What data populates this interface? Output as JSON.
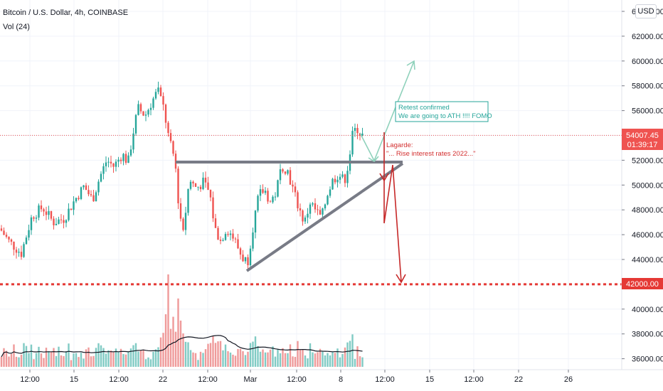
{
  "header": {
    "symbol_line": "Bitcoin / U.S. Dollar, 4h, COINBASE",
    "volume_line": "Vol (24)"
  },
  "currency_button": "USD",
  "price_axis": {
    "ticks": [
      "64000.00",
      "62000.00",
      "60000.00",
      "58000.00",
      "56000.00",
      "54000.00",
      "52000.00",
      "50000.00",
      "48000.00",
      "46000.00",
      "44000.00",
      "42000.00",
      "40000.00",
      "38000.00",
      "36000.00"
    ],
    "current_price_label": "54007.45",
    "countdown_label": "01:39:17",
    "target_price_label": "42000.00"
  },
  "time_axis": {
    "ticks": [
      "12:00",
      "15",
      "12:00",
      "22",
      "12:00",
      "Mar",
      "12:00",
      "8",
      "12:00",
      "15",
      "12:00",
      "22",
      "26"
    ]
  },
  "annotations": {
    "bullish_line1": "Retest confirmed",
    "bullish_line2": "We are going to ATH !!!! FOMO",
    "bearish_line1": "Lagarde:",
    "bearish_line2": "\"... Rise interest rates 2022...\""
  },
  "colors": {
    "up": "#26a69a",
    "down": "#ef5350",
    "volume_up": "#80cbc4",
    "volume_down": "#ef9a9a",
    "trendline": "#787b86",
    "support": "#e53935",
    "bull_arrow": "#8fd1bb",
    "bear_arrow": "#c62828"
  },
  "chart_data": {
    "type": "candlestick",
    "timeframe": "4h",
    "y_range": [
      35000,
      64800
    ],
    "current_price": 54007.45,
    "support_level": 42000,
    "close_path": [
      {
        "x": 0,
        "y": 46500
      },
      {
        "x": 12,
        "y": 45500
      },
      {
        "x": 30,
        "y": 44500
      },
      {
        "x": 45,
        "y": 47500
      },
      {
        "x": 60,
        "y": 48200
      },
      {
        "x": 75,
        "y": 47000
      },
      {
        "x": 90,
        "y": 47300
      },
      {
        "x": 105,
        "y": 48800
      },
      {
        "x": 118,
        "y": 49900
      },
      {
        "x": 130,
        "y": 48800
      },
      {
        "x": 140,
        "y": 50600
      },
      {
        "x": 150,
        "y": 52000
      },
      {
        "x": 160,
        "y": 51500
      },
      {
        "x": 172,
        "y": 52500
      },
      {
        "x": 180,
        "y": 51800
      },
      {
        "x": 188,
        "y": 54500
      },
      {
        "x": 194,
        "y": 56200
      },
      {
        "x": 204,
        "y": 55600
      },
      {
        "x": 214,
        "y": 56800
      },
      {
        "x": 222,
        "y": 57600
      },
      {
        "x": 230,
        "y": 56200
      },
      {
        "x": 238,
        "y": 53500
      },
      {
        "x": 246,
        "y": 52000
      },
      {
        "x": 252,
        "y": 47800
      },
      {
        "x": 258,
        "y": 46400
      },
      {
        "x": 266,
        "y": 50400
      },
      {
        "x": 276,
        "y": 49800
      },
      {
        "x": 286,
        "y": 50200
      },
      {
        "x": 295,
        "y": 49300
      },
      {
        "x": 302,
        "y": 46500
      },
      {
        "x": 310,
        "y": 45500
      },
      {
        "x": 318,
        "y": 46500
      },
      {
        "x": 326,
        "y": 46000
      },
      {
        "x": 334,
        "y": 45000
      },
      {
        "x": 340,
        "y": 44200
      },
      {
        "x": 348,
        "y": 43800
      },
      {
        "x": 356,
        "y": 46800
      },
      {
        "x": 364,
        "y": 49200
      },
      {
        "x": 372,
        "y": 49600
      },
      {
        "x": 380,
        "y": 48600
      },
      {
        "x": 388,
        "y": 49400
      },
      {
        "x": 396,
        "y": 51600
      },
      {
        "x": 404,
        "y": 51200
      },
      {
        "x": 412,
        "y": 49600
      },
      {
        "x": 420,
        "y": 48200
      },
      {
        "x": 428,
        "y": 46900
      },
      {
        "x": 436,
        "y": 48600
      },
      {
        "x": 444,
        "y": 47900
      },
      {
        "x": 452,
        "y": 47300
      },
      {
        "x": 460,
        "y": 49300
      },
      {
        "x": 468,
        "y": 50400
      },
      {
        "x": 476,
        "y": 50900
      },
      {
        "x": 484,
        "y": 50300
      },
      {
        "x": 490,
        "y": 51800
      },
      {
        "x": 496,
        "y": 54200
      },
      {
        "x": 502,
        "y": 54600
      },
      {
        "x": 508,
        "y": 54000
      }
    ]
  }
}
